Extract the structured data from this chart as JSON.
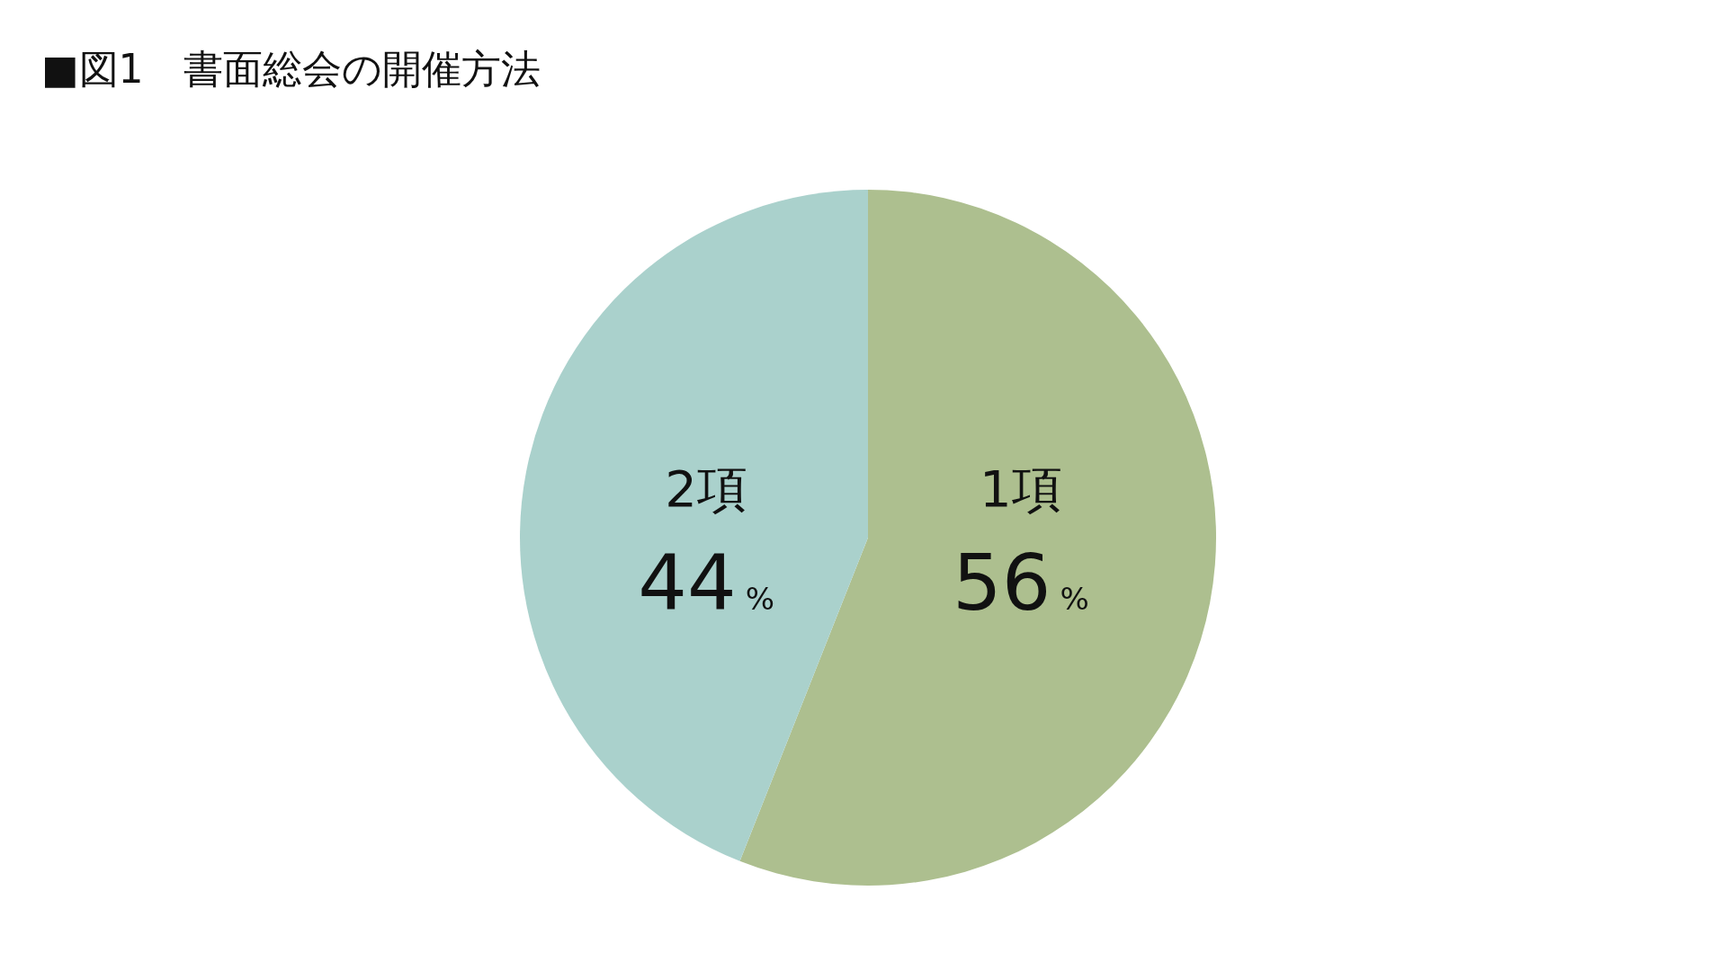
{
  "chart_data": {
    "type": "pie",
    "title": "■図1　書面総会の開催方法",
    "categories": [
      "1項",
      "2項"
    ],
    "values": [
      56,
      44
    ],
    "value_labels": [
      "56%",
      "44%"
    ],
    "colors": [
      "#adbf8f",
      "#aad1cc"
    ]
  }
}
